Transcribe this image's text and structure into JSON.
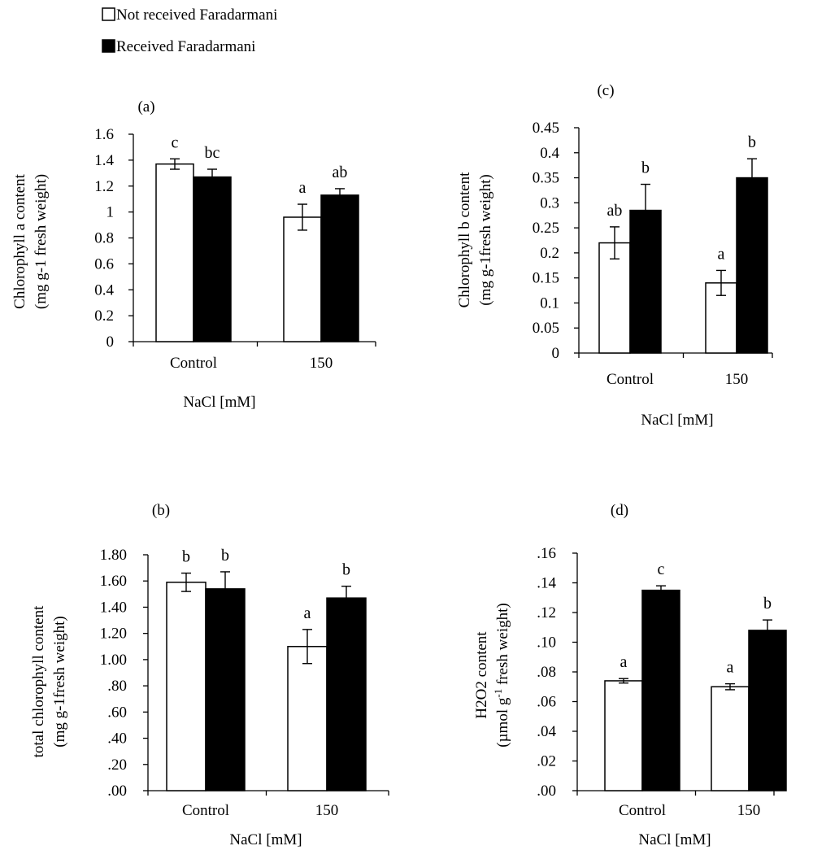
{
  "legend": {
    "entries": [
      {
        "label": "Not received Faradarmani",
        "color": "#ffffff"
      },
      {
        "label": "Received Faradarmani",
        "color": "#000000"
      }
    ]
  },
  "chart_data": [
    {
      "id": "a",
      "type": "bar",
      "panel_label": "(a)",
      "categories": [
        "Control",
        "150"
      ],
      "ylabel": [
        "Chlorophyll a content",
        "(mg g-1 fresh weight)"
      ],
      "xlabel": "NaCl [mM]",
      "ylim": [
        0,
        1.6
      ],
      "yticks": [
        0,
        0.2,
        0.4,
        0.6,
        0.8,
        1,
        1.2,
        1.4,
        1.6
      ],
      "ytick_labels": [
        "0",
        "0.2",
        "0.4",
        "0.6",
        "0.8",
        "1",
        "1.2",
        "1.4",
        "1.6"
      ],
      "series": [
        {
          "name": "Not received Faradarmani",
          "values": [
            1.37,
            0.96
          ],
          "errors": [
            0.04,
            0.1
          ],
          "letters": [
            "c",
            "a"
          ]
        },
        {
          "name": "Received Faradarmani",
          "values": [
            1.27,
            1.13
          ],
          "errors": [
            0.06,
            0.05
          ],
          "letters": [
            "bc",
            "ab"
          ]
        }
      ]
    },
    {
      "id": "c",
      "type": "bar",
      "panel_label": "(c)",
      "categories": [
        "Control",
        "150"
      ],
      "ylabel": [
        "Chlorophyll  b content",
        "(mg g-1fresh weight)"
      ],
      "xlabel": "NaCl [mM]",
      "ylim": [
        0,
        0.45
      ],
      "yticks": [
        0,
        0.05,
        0.1,
        0.15,
        0.2,
        0.25,
        0.3,
        0.35,
        0.4,
        0.45
      ],
      "ytick_labels": [
        "0",
        "0.05",
        "0.1",
        "0.15",
        "0.2",
        "0.25",
        "0.3",
        "0.35",
        "0.4",
        "0.45"
      ],
      "series": [
        {
          "name": "Not received Faradarmani",
          "values": [
            0.22,
            0.14
          ],
          "errors": [
            0.032,
            0.025
          ],
          "letters": [
            "ab",
            "a"
          ]
        },
        {
          "name": "Received Faradarmani",
          "values": [
            0.285,
            0.35
          ],
          "errors": [
            0.052,
            0.038
          ],
          "letters": [
            "b",
            "b"
          ]
        }
      ]
    },
    {
      "id": "b",
      "type": "bar",
      "panel_label": "(b)",
      "categories": [
        "Control",
        "150"
      ],
      "ylabel": [
        "total chlorophyll content",
        "(mg g-1fresh weight)"
      ],
      "xlabel": "NaCl [mM]",
      "ylim": [
        0,
        1.8
      ],
      "yticks": [
        0,
        0.2,
        0.4,
        0.6,
        0.8,
        1.0,
        1.2,
        1.4,
        1.6,
        1.8
      ],
      "ytick_labels": [
        ".00",
        ".20",
        ".40",
        ".60",
        ".80",
        "1.00",
        "1.20",
        "1.40",
        "1.60",
        "1.80"
      ],
      "series": [
        {
          "name": "Not received Faradarmani",
          "values": [
            1.59,
            1.1
          ],
          "errors": [
            0.07,
            0.13
          ],
          "letters": [
            "b",
            "a"
          ]
        },
        {
          "name": "Received Faradarmani",
          "values": [
            1.54,
            1.47
          ],
          "errors": [
            0.13,
            0.09
          ],
          "letters": [
            "b",
            "b"
          ]
        }
      ]
    },
    {
      "id": "d",
      "type": "bar",
      "panel_label": "(d)",
      "categories": [
        "Control",
        "150"
      ],
      "ylabel": [
        "H2O2 content",
        "(µmol g-1 fresh weight)"
      ],
      "xlabel": "NaCl [mM]",
      "ylim": [
        0,
        0.16
      ],
      "yticks": [
        0,
        0.02,
        0.04,
        0.06,
        0.08,
        0.1,
        0.12,
        0.14,
        0.16
      ],
      "ytick_labels": [
        ".00",
        ".02",
        ".04",
        ".06",
        ".08",
        ".10",
        ".12",
        ".14",
        ".16"
      ],
      "series": [
        {
          "name": "Not received Faradarmani",
          "values": [
            0.074,
            0.07
          ],
          "errors": [
            0.0015,
            0.002
          ],
          "letters": [
            "a",
            "a"
          ]
        },
        {
          "name": "Received Faradarmani",
          "values": [
            0.135,
            0.108
          ],
          "errors": [
            0.003,
            0.007
          ],
          "letters": [
            "c",
            "b"
          ]
        }
      ]
    }
  ]
}
